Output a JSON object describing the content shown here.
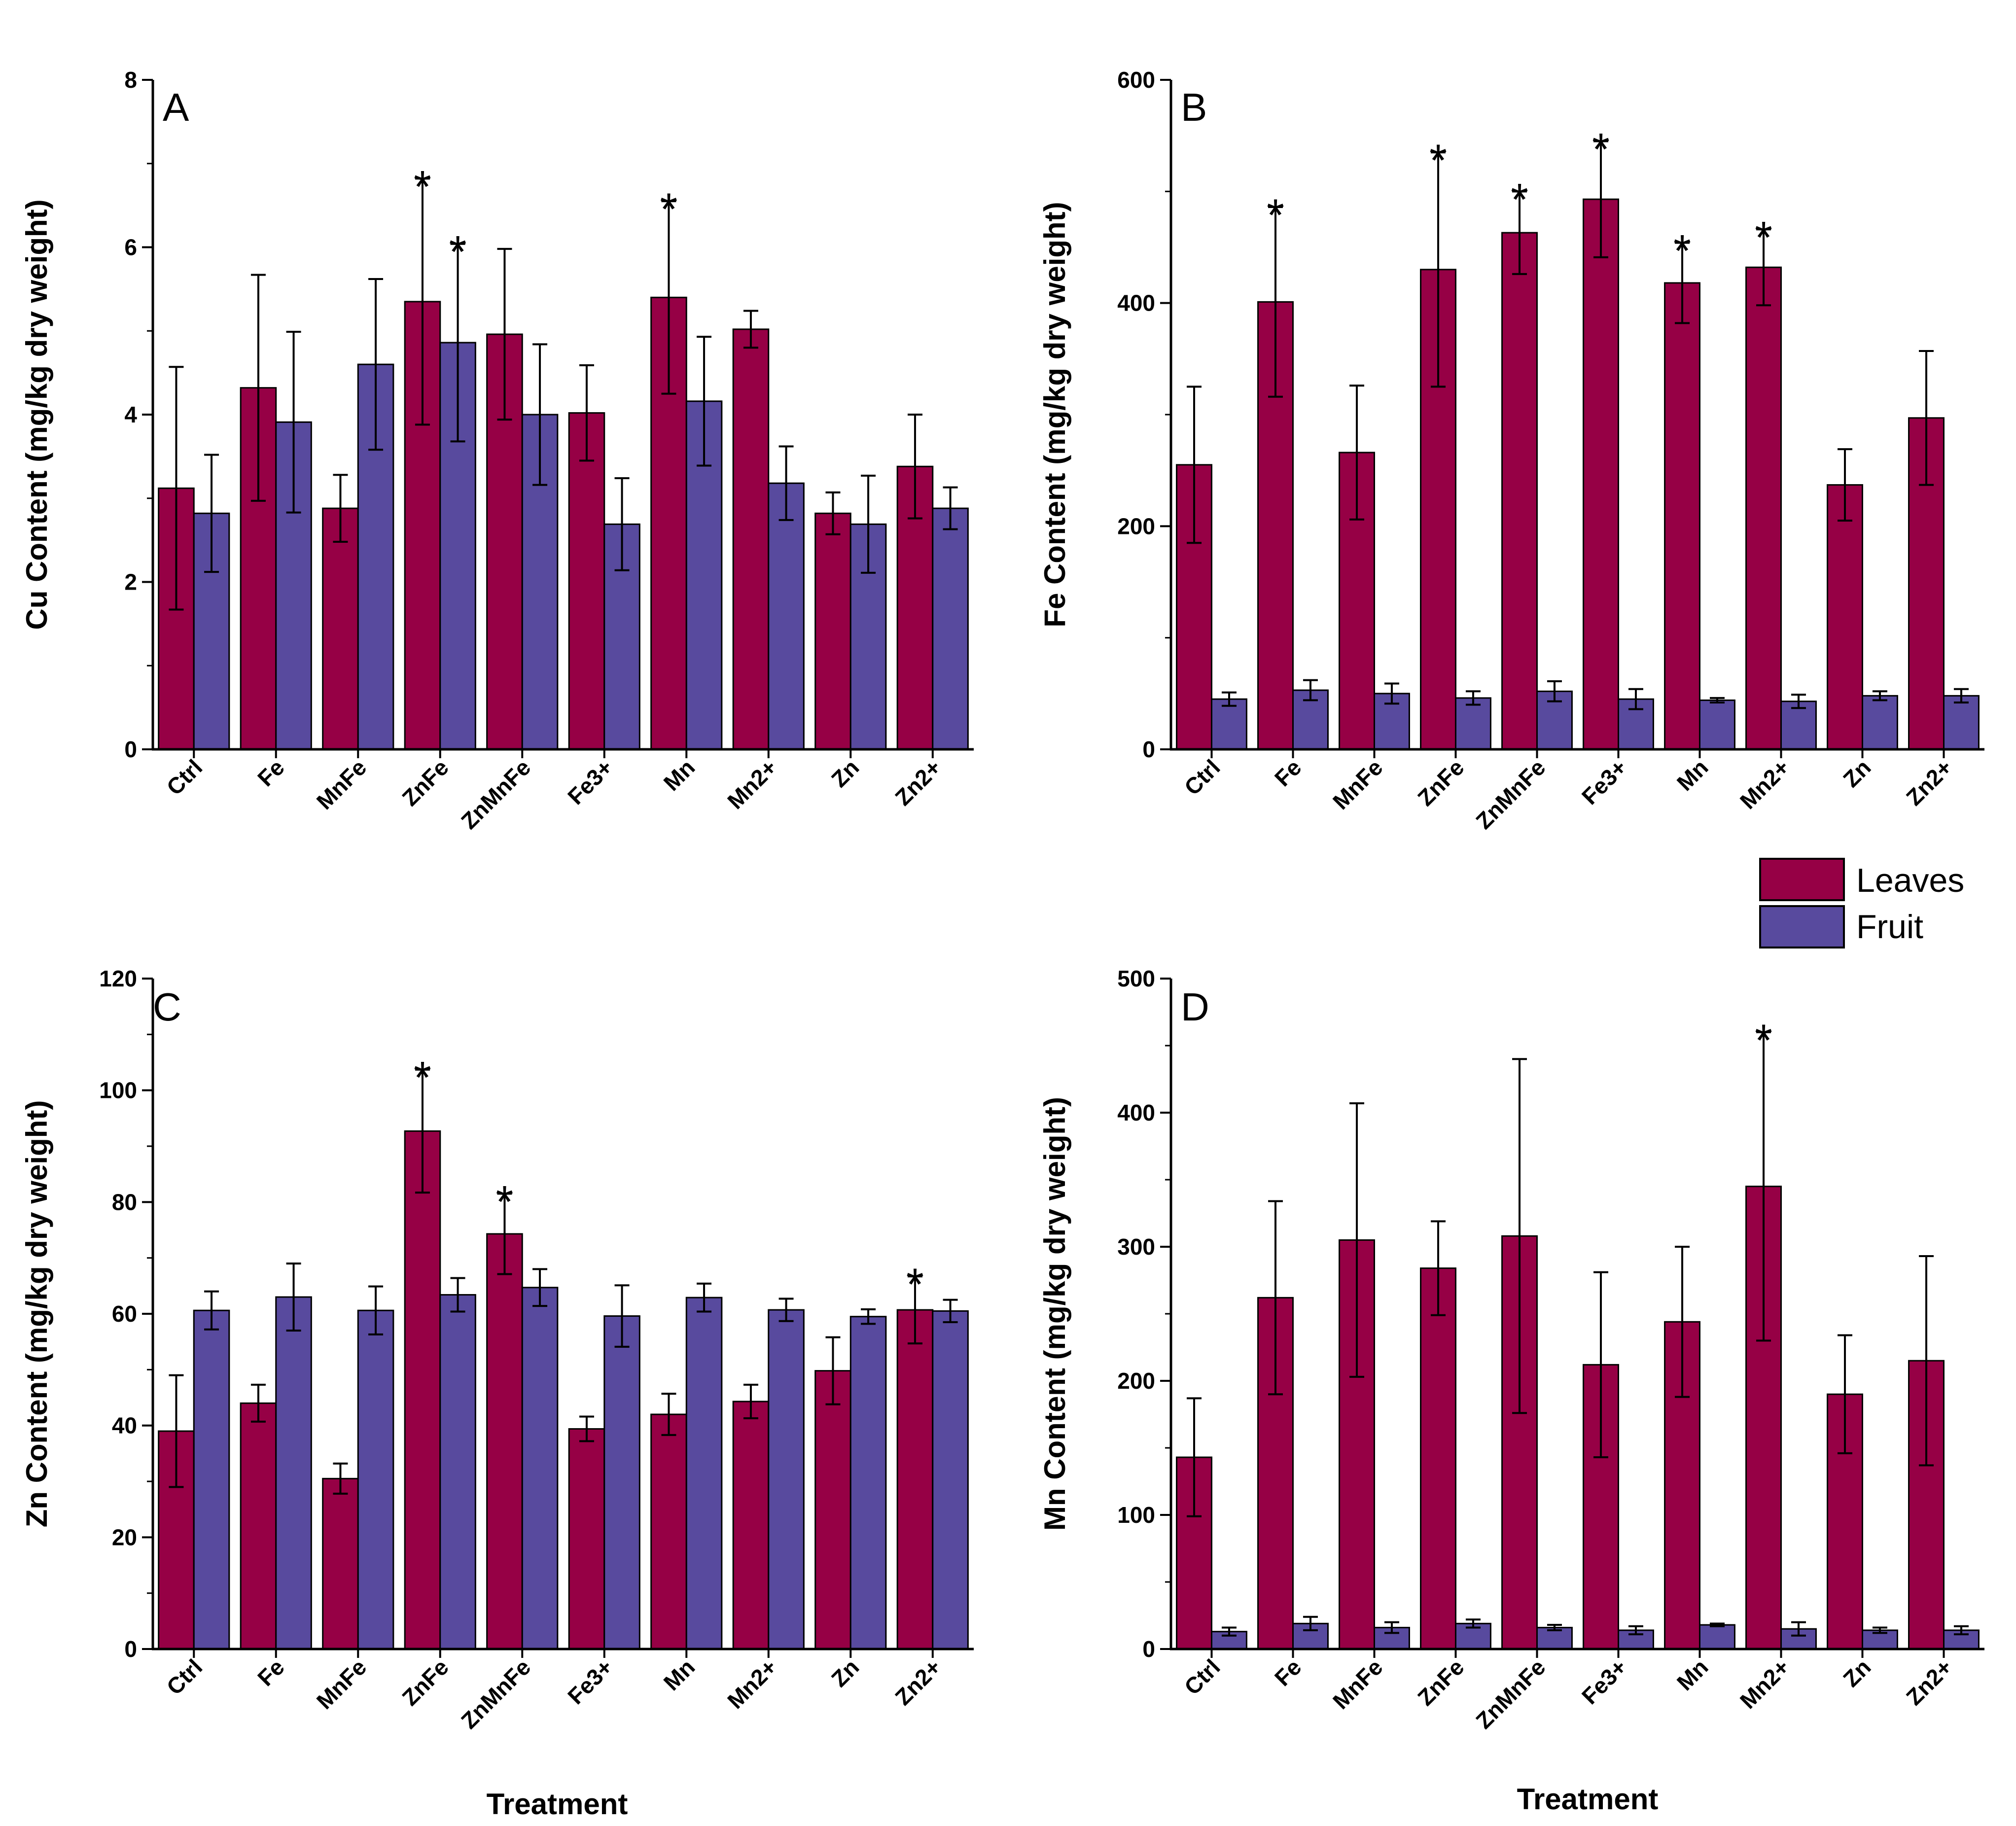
{
  "colors": {
    "leaves": "#960045",
    "fruit": "#584A9E",
    "axis": "#000000"
  },
  "legend": {
    "entries": [
      "Leaves",
      "Fruit"
    ],
    "placement": "right-middle"
  },
  "x_title": "Treatment",
  "chart_data": [
    {
      "type": "bar",
      "panel": "A",
      "ylabel": "Cu Content (mg/kg dry weight)",
      "ylim": [
        0,
        8
      ],
      "yticks": [
        0,
        2,
        4,
        6,
        8
      ],
      "categories": [
        "Ctrl",
        "Fe",
        "MnFe",
        "ZnFe",
        "ZnMnFe",
        "Fe3+",
        "Mn",
        "Mn2+",
        "Zn",
        "Zn2+"
      ],
      "series": [
        {
          "name": "Leaves",
          "values": [
            3.12,
            4.32,
            2.88,
            5.35,
            4.96,
            4.02,
            5.4,
            5.02,
            2.82,
            3.38
          ],
          "errors": [
            1.45,
            1.35,
            0.4,
            1.47,
            1.02,
            0.57,
            1.15,
            0.22,
            0.25,
            0.62
          ],
          "marks": [
            false,
            false,
            false,
            true,
            false,
            false,
            true,
            false,
            false,
            false
          ]
        },
        {
          "name": "Fruit",
          "values": [
            2.82,
            3.91,
            4.6,
            4.86,
            4.0,
            2.69,
            4.16,
            3.18,
            2.69,
            2.88
          ],
          "errors": [
            0.7,
            1.08,
            1.02,
            1.18,
            0.84,
            0.55,
            0.77,
            0.44,
            0.58,
            0.25
          ],
          "marks": [
            false,
            false,
            false,
            true,
            false,
            false,
            false,
            false,
            false,
            false
          ]
        }
      ],
      "mark_symbol": "*"
    },
    {
      "type": "bar",
      "panel": "B",
      "ylabel": "Fe Content (mg/kg dry weight)",
      "ylim": [
        0,
        600
      ],
      "yticks": [
        0,
        200,
        400,
        600
      ],
      "categories": [
        "Ctrl",
        "Fe",
        "MnFe",
        "ZnFe",
        "ZnMnFe",
        "Fe3+",
        "Mn",
        "Mn2+",
        "Zn",
        "Zn2+"
      ],
      "series": [
        {
          "name": "Leaves",
          "values": [
            255,
            401,
            266,
            430,
            463,
            493,
            418,
            432,
            237,
            297
          ],
          "errors": [
            70,
            85,
            60,
            105,
            37,
            52,
            36,
            34,
            32,
            60
          ],
          "marks": [
            false,
            true,
            false,
            true,
            true,
            true,
            true,
            true,
            false,
            false
          ]
        },
        {
          "name": "Fruit",
          "values": [
            45,
            53,
            50,
            46,
            52,
            45,
            44,
            43,
            48,
            48
          ],
          "errors": [
            6,
            9,
            9,
            6,
            9,
            9,
            2,
            6,
            4,
            6
          ],
          "marks": [
            false,
            false,
            false,
            false,
            false,
            false,
            false,
            false,
            false,
            false
          ]
        }
      ],
      "mark_symbol": "*"
    },
    {
      "type": "bar",
      "panel": "C",
      "ylabel": "Zn Content (mg/kg dry weight)",
      "ylim": [
        0,
        120
      ],
      "yticks": [
        0,
        20,
        40,
        60,
        80,
        100,
        120
      ],
      "categories": [
        "Ctrl",
        "Fe",
        "MnFe",
        "ZnFe",
        "ZnMnFe",
        "Fe3+",
        "Mn",
        "Mn2+",
        "Zn",
        "Zn2+"
      ],
      "series": [
        {
          "name": "Leaves",
          "values": [
            39,
            44,
            30.5,
            92.7,
            74.3,
            39.4,
            42,
            44.3,
            49.8,
            60.7
          ],
          "errors": [
            10,
            3.3,
            2.7,
            11,
            7.2,
            2.2,
            3.7,
            3,
            6,
            6
          ],
          "marks": [
            false,
            false,
            false,
            true,
            true,
            false,
            false,
            false,
            false,
            true
          ]
        },
        {
          "name": "Fruit",
          "values": [
            60.6,
            63,
            60.6,
            63.4,
            64.7,
            59.6,
            62.9,
            60.7,
            59.5,
            60.5
          ],
          "errors": [
            3.4,
            6,
            4.3,
            3,
            3.3,
            5.5,
            2.5,
            2,
            1.3,
            2
          ],
          "marks": [
            false,
            false,
            false,
            false,
            false,
            false,
            false,
            false,
            false,
            false
          ]
        }
      ],
      "mark_symbol": "*"
    },
    {
      "type": "bar",
      "panel": "D",
      "ylabel": "Mn Content (mg/kg dry weight)",
      "ylim": [
        0,
        500
      ],
      "yticks": [
        0,
        100,
        200,
        300,
        400,
        500
      ],
      "categories": [
        "Ctrl",
        "Fe",
        "MnFe",
        "ZnFe",
        "ZnMnFe",
        "Fe3+",
        "Mn",
        "Mn2+",
        "Zn",
        "Zn2+"
      ],
      "series": [
        {
          "name": "Leaves",
          "values": [
            143,
            262,
            305,
            284,
            308,
            212,
            244,
            345,
            190,
            215
          ],
          "errors": [
            44,
            72,
            102,
            35,
            132,
            69,
            56,
            115,
            44,
            78
          ],
          "marks": [
            false,
            false,
            false,
            false,
            false,
            false,
            false,
            true,
            false,
            false
          ]
        },
        {
          "name": "Fruit",
          "values": [
            13,
            19,
            16,
            19,
            16,
            14,
            18,
            15,
            14,
            14
          ],
          "errors": [
            3,
            5,
            4,
            3,
            2,
            3,
            1,
            5,
            2,
            3
          ],
          "marks": [
            false,
            false,
            false,
            false,
            false,
            false,
            false,
            false,
            false,
            false
          ]
        }
      ],
      "mark_symbol": "*"
    }
  ]
}
